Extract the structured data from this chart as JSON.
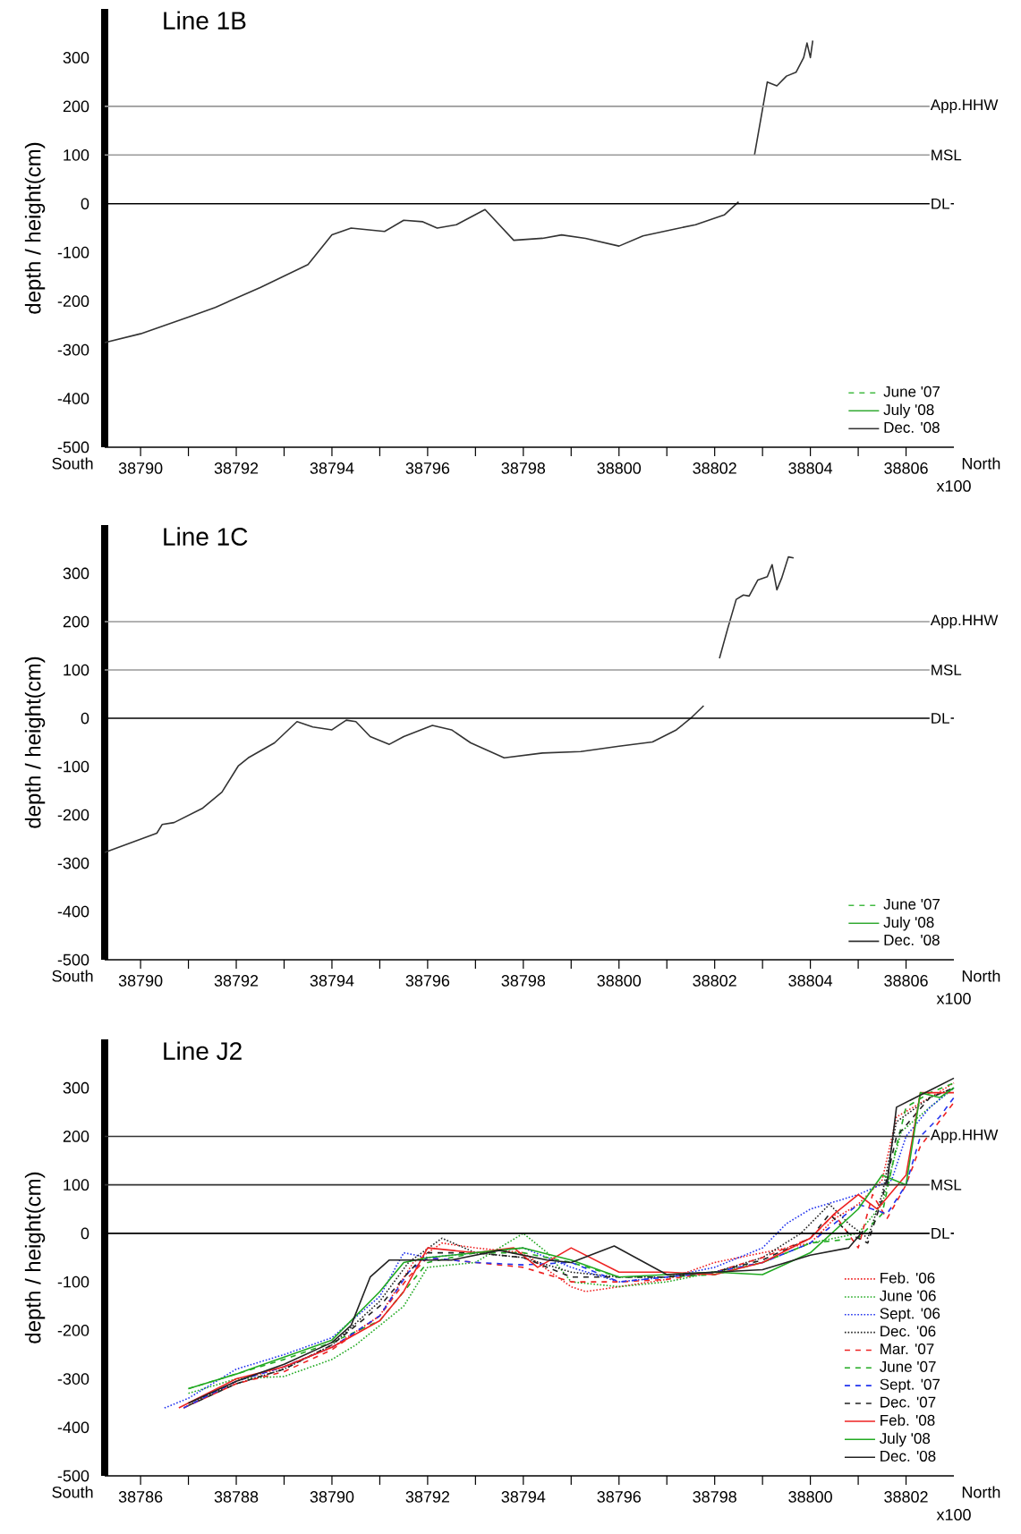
{
  "chart_data": [
    {
      "type": "line",
      "title": "Line 1B",
      "xlabel": "x100",
      "ylabel": "depth / height(cm)",
      "annotations": [
        "South",
        "North"
      ],
      "xlim": [
        38789.25,
        38807
      ],
      "ylim": [
        -500,
        400
      ],
      "xticks": [
        38790,
        {
          "value": 38791,
          "label": null
        },
        38792,
        {
          "value": 38793,
          "label": null
        },
        38794,
        {
          "value": 38795,
          "label": null
        },
        38796,
        {
          "value": 38797,
          "label": null
        },
        38798,
        {
          "value": 38799,
          "label": null
        },
        38800,
        {
          "value": 38801,
          "label": null
        },
        38802,
        {
          "value": 38803,
          "label": null
        },
        38804,
        {
          "value": 38805,
          "label": null
        },
        38806
      ],
      "yticks": [
        -500,
        -400,
        -300,
        -200,
        -100,
        0,
        100,
        200,
        300
      ],
      "ref_lines": [
        {
          "axis": "y",
          "value": 200,
          "label": "App.HHW",
          "color": "#999999"
        },
        {
          "axis": "y",
          "value": 100,
          "label": "MSL",
          "color": "#999999"
        },
        {
          "axis": "y",
          "value": 0,
          "label": "DL",
          "color": "#000000"
        }
      ],
      "legend": "bottom right",
      "x": [
        38789.25,
        38790,
        38791,
        38791.56,
        38792.5,
        38793.5,
        38794,
        38794.4,
        38795.1,
        38795.5,
        38795.9,
        38796.2,
        38796.6,
        38797.2,
        38797.8,
        38798.4,
        38798.8,
        38799.3,
        38800,
        38800.5,
        38801.6,
        38802.2,
        38802.5,
        38802.65,
        38802.83,
        38803.1,
        38803.3,
        38803.5,
        38803.7,
        38803.86,
        38803.93,
        38804,
        38804.05
      ],
      "series": [
        {
          "name": "June '07",
          "color": "#44bb44",
          "line_style": "dashed",
          "values": [
            null,
            null,
            null,
            null,
            null,
            null,
            null,
            null,
            null,
            null,
            null,
            null,
            null,
            null,
            null,
            null,
            null,
            null,
            null,
            null,
            null,
            null,
            null,
            null,
            null,
            null,
            null,
            null,
            null,
            null,
            null,
            null,
            null
          ]
        },
        {
          "name": "July '08",
          "color": "#33aa33",
          "line_style": "solid",
          "values": [
            null,
            null,
            null,
            null,
            null,
            null,
            null,
            null,
            null,
            null,
            null,
            null,
            null,
            null,
            null,
            null,
            null,
            null,
            null,
            null,
            null,
            null,
            null,
            null,
            null,
            null,
            null,
            null,
            null,
            null,
            null,
            null,
            null
          ]
        },
        {
          "name": "Dec. '08",
          "color": "#333333",
          "line_style": "solid",
          "values": [
            -285,
            -267,
            -233,
            -213,
            -172,
            -125,
            -64,
            -50,
            -57,
            -34,
            -37,
            -50,
            -43,
            -12,
            -75,
            -71,
            -64,
            -71,
            -87,
            -66,
            -43,
            -23,
            4,
            null,
            99,
            250,
            242,
            262,
            270,
            300,
            330,
            300,
            335
          ]
        }
      ]
    },
    {
      "type": "line",
      "title": "Line 1C",
      "xlabel": "x100",
      "ylabel": "depth / height(cm)",
      "annotations": [
        "South",
        "North"
      ],
      "xlim": [
        38789.25,
        38807
      ],
      "ylim": [
        -500,
        400
      ],
      "xticks": [
        38790,
        {
          "value": 38791,
          "label": null
        },
        38792,
        {
          "value": 38793,
          "label": null
        },
        38794,
        {
          "value": 38795,
          "label": null
        },
        38796,
        {
          "value": 38797,
          "label": null
        },
        38798,
        {
          "value": 38799,
          "label": null
        },
        38800,
        {
          "value": 38801,
          "label": null
        },
        38802,
        {
          "value": 38803,
          "label": null
        },
        38804,
        {
          "value": 38805,
          "label": null
        },
        38806
      ],
      "yticks": [
        -500,
        -400,
        -300,
        -200,
        -100,
        0,
        100,
        200,
        300
      ],
      "ref_lines": [
        {
          "axis": "y",
          "value": 200,
          "label": "App.HHW",
          "color": "#999999"
        },
        {
          "axis": "y",
          "value": 100,
          "label": "MSL",
          "color": "#999999"
        },
        {
          "axis": "y",
          "value": 0,
          "label": "DL",
          "color": "#000000"
        }
      ],
      "legend": "bottom right",
      "x": [
        38789.25,
        38790.34,
        38790.45,
        38790.7,
        38791.3,
        38791.7,
        38792.04,
        38792.25,
        38792.8,
        38793.27,
        38793.6,
        38794,
        38794.3,
        38794.5,
        38794.8,
        38795.2,
        38795.5,
        38796.1,
        38796.5,
        38796.9,
        38797.6,
        38798.4,
        38799.2,
        38800,
        38800.7,
        38801.2,
        38801.5,
        38801.77,
        38801.95,
        38802.1,
        38802.27,
        38802.45,
        38802.6,
        38802.72,
        38802.9,
        38803.1,
        38803.2,
        38803.3,
        38803.4,
        38803.54,
        38803.65
      ],
      "series": [
        {
          "name": "June '07",
          "color": "#44bb44",
          "line_style": "dashed",
          "values": [
            null,
            null,
            null,
            null,
            null,
            null,
            null,
            null,
            null,
            null,
            null,
            null,
            null,
            null,
            null,
            null,
            null,
            null,
            null,
            null,
            null,
            null,
            null,
            null,
            null,
            null,
            null,
            null,
            null,
            null,
            null,
            null,
            null,
            null,
            null,
            null,
            null,
            null,
            null,
            null,
            null
          ]
        },
        {
          "name": "July '08",
          "color": "#33aa33",
          "line_style": "solid",
          "values": [
            null,
            null,
            null,
            null,
            null,
            null,
            null,
            null,
            null,
            null,
            null,
            null,
            null,
            null,
            null,
            null,
            null,
            null,
            null,
            null,
            null,
            null,
            null,
            null,
            null,
            null,
            null,
            null,
            null,
            null,
            null,
            null,
            null,
            null,
            null,
            null,
            null,
            null,
            null,
            null,
            null
          ]
        },
        {
          "name": "Dec. '08",
          "color": "#333333",
          "line_style": "solid",
          "values": [
            -278,
            -238,
            -220,
            -216,
            -186,
            -153,
            -99,
            -82,
            -51,
            -7,
            -18,
            -24,
            -4,
            -7,
            -38,
            -54,
            -38,
            -15,
            -24,
            -51,
            -82,
            -72,
            -69,
            -58,
            -49,
            -24,
            0,
            26,
            null,
            124,
            185,
            246,
            255,
            253,
            286,
            293,
            318,
            266,
            290,
            334,
            332
          ]
        }
      ]
    },
    {
      "type": "line",
      "title": "Line J2",
      "xlabel": "x100",
      "ylabel": "depth / height(cm)",
      "annotations": [
        "South",
        "North"
      ],
      "xlim": [
        38785.25,
        38803
      ],
      "ylim": [
        -500,
        400
      ],
      "xticks": [
        38786,
        {
          "value": 38787,
          "label": null
        },
        38788,
        {
          "value": 38789,
          "label": null
        },
        38790,
        {
          "value": 38791,
          "label": null
        },
        38792,
        {
          "value": 38793,
          "label": null
        },
        38794,
        {
          "value": 38795,
          "label": null
        },
        38796,
        {
          "value": 38797,
          "label": null
        },
        38798,
        {
          "value": 38799,
          "label": null
        },
        38800,
        {
          "value": 38801,
          "label": null
        },
        38802
      ],
      "yticks": [
        -500,
        -400,
        -300,
        -200,
        -100,
        0,
        100,
        200,
        300
      ],
      "ref_lines": [
        {
          "axis": "y",
          "value": 200,
          "label": "App.HHW",
          "color": "#333333"
        },
        {
          "axis": "y",
          "value": 100,
          "label": "MSL",
          "color": "#333333"
        },
        {
          "axis": "y",
          "value": 0,
          "label": "DL",
          "color": "#000000"
        }
      ],
      "legend": "bottom right",
      "series": [
        {
          "name": "Feb. '06",
          "color": "#ee2222",
          "line_style": "dotted",
          "x": [
            38786.9,
            38788,
            38789,
            38790,
            38791,
            38791.7,
            38792.3,
            38793,
            38794,
            38795,
            38795.3,
            38796,
            38797,
            38798,
            38799,
            38800,
            38800.5,
            38801,
            38801.5,
            38801.8,
            38802.5,
            38803
          ],
          "values": [
            -360,
            -305,
            -275,
            -235,
            -170,
            -60,
            -20,
            -30,
            -40,
            -110,
            -120,
            -110,
            -95,
            -60,
            -40,
            -20,
            30,
            60,
            110,
            240,
            280,
            310
          ]
        },
        {
          "name": "June '06",
          "color": "#22aa22",
          "line_style": "dotted",
          "x": [
            38787,
            38788,
            38789,
            38790,
            38790.5,
            38791,
            38791.5,
            38792,
            38793,
            38794,
            38794.5,
            38795,
            38796,
            38797,
            38798,
            38799,
            38800,
            38801,
            38801.5,
            38801.9,
            38802.5,
            38803
          ],
          "values": [
            -330,
            -300,
            -295,
            -260,
            -230,
            -190,
            -150,
            -70,
            -60,
            0,
            -40,
            -100,
            -110,
            -100,
            -80,
            -60,
            -20,
            0,
            60,
            210,
            260,
            300
          ]
        },
        {
          "name": "Sept. '06",
          "color": "#2233ee",
          "line_style": "dotted",
          "x": [
            38786.5,
            38787,
            38788,
            38789,
            38790,
            38791,
            38791.5,
            38792,
            38793,
            38794,
            38795,
            38796,
            38797,
            38798,
            38799,
            38799.5,
            38800,
            38801,
            38801.7,
            38802,
            38802.5,
            38803
          ],
          "values": [
            -360,
            -340,
            -280,
            -250,
            -215,
            -130,
            -40,
            -50,
            -40,
            -30,
            -70,
            -100,
            -90,
            -70,
            -30,
            20,
            50,
            80,
            110,
            200,
            260,
            300
          ]
        },
        {
          "name": "Dec. '06",
          "color": "#222222",
          "line_style": "dotted",
          "x": [
            38787,
            38788,
            38789,
            38790,
            38791,
            38791.6,
            38792.3,
            38793,
            38794,
            38795,
            38796,
            38797,
            38798,
            38799,
            38799.8,
            38800.4,
            38800.8,
            38801.2,
            38801.5,
            38801.8,
            38802.5,
            38803
          ],
          "values": [
            -350,
            -310,
            -280,
            -230,
            -140,
            -60,
            -10,
            -40,
            -50,
            -80,
            -90,
            -90,
            -80,
            -50,
            0,
            60,
            20,
            -10,
            80,
            230,
            280,
            300
          ]
        },
        {
          "name": "Mar. '07",
          "color": "#ee2222",
          "line_style": "dashed",
          "x": [
            38786.9,
            38788,
            38789,
            38790,
            38791,
            38791.6,
            38792,
            38793,
            38794,
            38795,
            38796,
            38797,
            38798,
            38799,
            38800,
            38800.5,
            38801,
            38801.3,
            38801.6,
            38802,
            38802.3,
            38803
          ],
          "values": [
            -360,
            -310,
            -285,
            -240,
            -170,
            -90,
            -50,
            -60,
            -70,
            -100,
            -100,
            -95,
            -80,
            -50,
            -10,
            40,
            -30,
            80,
            30,
            100,
            180,
            270
          ]
        },
        {
          "name": "June '07",
          "color": "#22aa22",
          "line_style": "dashed",
          "x": [
            38787,
            38788,
            38789,
            38790,
            38791,
            38791.5,
            38792,
            38793,
            38794,
            38795,
            38796,
            38797,
            38798,
            38799,
            38800,
            38801,
            38801.5,
            38801.8,
            38802,
            38802.5,
            38803
          ],
          "values": [
            -320,
            -290,
            -260,
            -225,
            -180,
            -120,
            -60,
            -40,
            -40,
            -60,
            -90,
            -90,
            -85,
            -60,
            -20,
            -10,
            40,
            180,
            260,
            290,
            310
          ]
        },
        {
          "name": "Sept. '07",
          "color": "#2233ee",
          "line_style": "dashed",
          "x": [
            38786.9,
            38788,
            38789,
            38790,
            38791,
            38791.6,
            38792,
            38793,
            38794,
            38795,
            38796,
            38797,
            38798,
            38799,
            38800,
            38800.5,
            38801,
            38801.6,
            38802,
            38802.3,
            38802.7,
            38803
          ],
          "values": [
            -360,
            -305,
            -275,
            -235,
            -170,
            -80,
            -50,
            -60,
            -65,
            -60,
            -100,
            -90,
            -80,
            -60,
            -20,
            20,
            60,
            40,
            100,
            200,
            240,
            280
          ]
        },
        {
          "name": "Dec. '07",
          "color": "#222222",
          "line_style": "dashed",
          "x": [
            38787,
            38788,
            38789,
            38790,
            38791,
            38791.6,
            38792,
            38793,
            38794,
            38795,
            38796,
            38797,
            38798,
            38799,
            38800,
            38800.4,
            38800.8,
            38801.2,
            38801.5,
            38801.8,
            38802.5,
            38803
          ],
          "values": [
            -355,
            -310,
            -280,
            -230,
            -150,
            -80,
            -40,
            -40,
            -50,
            -90,
            -90,
            -90,
            -80,
            -55,
            -10,
            40,
            0,
            -20,
            70,
            200,
            280,
            300
          ]
        },
        {
          "name": "Feb. '08",
          "color": "#ee2222",
          "line_style": "solid",
          "x": [
            38786.8,
            38788,
            38789,
            38790,
            38791,
            38791.5,
            38792,
            38793,
            38793.8,
            38794.3,
            38795,
            38796,
            38797,
            38798,
            38799,
            38800,
            38800.5,
            38801,
            38801.4,
            38802,
            38802.3,
            38803
          ],
          "values": [
            -360,
            -300,
            -275,
            -235,
            -180,
            -120,
            -30,
            -40,
            -30,
            -70,
            -30,
            -80,
            -80,
            -85,
            -60,
            -10,
            40,
            80,
            50,
            120,
            290,
            290
          ]
        },
        {
          "name": "July '08",
          "color": "#22aa22",
          "line_style": "solid",
          "x": [
            38787,
            38788,
            38789,
            38790,
            38791,
            38791.5,
            38792,
            38793,
            38794,
            38795,
            38796,
            38797,
            38798,
            38799,
            38800,
            38801,
            38801.5,
            38802,
            38802.3,
            38802.7,
            38803
          ],
          "values": [
            -320,
            -290,
            -255,
            -220,
            -120,
            -60,
            -50,
            -40,
            -30,
            -55,
            -90,
            -85,
            -80,
            -85,
            -40,
            50,
            120,
            100,
            290,
            280,
            300
          ]
        },
        {
          "name": "Dec. '08",
          "color": "#222222",
          "line_style": "solid",
          "x": [
            38787,
            38788,
            38789,
            38790,
            38790.4,
            38790.8,
            38791.2,
            38792.5,
            38793.5,
            38794.5,
            38795,
            38795.9,
            38797,
            38798,
            38799,
            38800,
            38800.8,
            38801.1,
            38801.35,
            38801.6,
            38801.8,
            38802.2,
            38802.6,
            38803
          ],
          "values": [
            -350,
            -305,
            -270,
            -225,
            -190,
            -90,
            -55,
            -55,
            -35,
            -55,
            -60,
            -26,
            -85,
            -80,
            -75,
            -45,
            -30,
            5,
            null,
            100,
            260,
            280,
            300,
            320
          ]
        }
      ]
    }
  ]
}
